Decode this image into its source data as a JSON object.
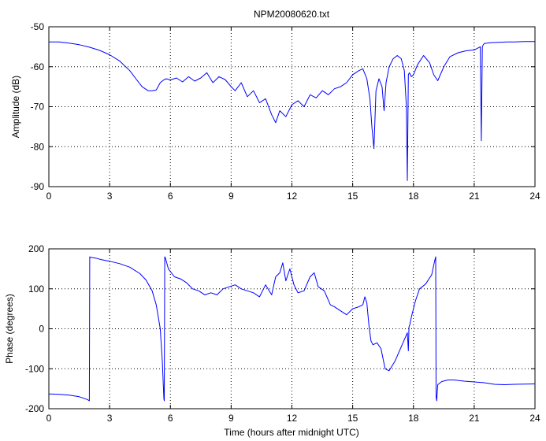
{
  "chart_data": [
    {
      "type": "line",
      "title": "NPM20080620.txt",
      "xlabel": "",
      "ylabel": "Amplitude (dB)",
      "xlim": [
        0,
        24
      ],
      "ylim": [
        -90,
        -50
      ],
      "xticks": [
        "0",
        "3",
        "6",
        "9",
        "12",
        "15",
        "18",
        "21",
        "24"
      ],
      "yticks": [
        "-50",
        "-60",
        "-70",
        "-80",
        "-90"
      ],
      "grid": true,
      "series": [
        {
          "color": "#0000ff",
          "x": [
            0,
            0.5,
            1,
            1.5,
            2,
            2.5,
            3,
            3.5,
            4,
            4.3,
            4.6,
            4.9,
            5.1,
            5.3,
            5.5,
            5.7,
            5.8,
            6.0,
            6.3,
            6.6,
            6.9,
            7.2,
            7.5,
            7.8,
            8.1,
            8.4,
            8.7,
            9.0,
            9.2,
            9.5,
            9.8,
            10.1,
            10.4,
            10.7,
            11.0,
            11.2,
            11.4,
            11.7,
            12.0,
            12.3,
            12.6,
            12.9,
            13.2,
            13.5,
            13.8,
            14.1,
            14.4,
            14.7,
            15.0,
            15.3,
            15.5,
            15.7,
            15.85,
            15.95,
            16.05,
            16.15,
            16.3,
            16.45,
            16.55,
            16.65,
            16.8,
            17.0,
            17.2,
            17.4,
            17.55,
            17.65,
            17.7,
            17.75,
            17.8,
            17.9,
            18.0,
            18.2,
            18.5,
            18.8,
            19.0,
            19.2,
            19.5,
            19.8,
            20.2,
            20.6,
            21.0,
            21.3,
            21.35,
            21.4,
            21.45,
            21.5,
            21.8,
            22.2,
            22.6,
            23.0,
            23.5,
            24
          ],
          "y": [
            -53.8,
            -53.8,
            -54.1,
            -54.5,
            -55.1,
            -55.9,
            -57.0,
            -58.6,
            -61.0,
            -63.0,
            -65.0,
            -66.0,
            -66.0,
            -65.8,
            -64.0,
            -63.2,
            -63.0,
            -63.3,
            -62.8,
            -63.8,
            -62.5,
            -63.6,
            -62.8,
            -61.5,
            -64.0,
            -62.5,
            -63.2,
            -65.0,
            -66.0,
            -64.0,
            -67.5,
            -66.0,
            -69.0,
            -68.0,
            -72.0,
            -74.0,
            -71.0,
            -72.5,
            -69.5,
            -68.5,
            -70.0,
            -67.0,
            -67.8,
            -66.0,
            -67.0,
            -65.5,
            -65.0,
            -64.0,
            -62.0,
            -61.0,
            -60.5,
            -63.0,
            -68.0,
            -75.0,
            -80.5,
            -66.0,
            -63.0,
            -65.0,
            -71.0,
            -64.0,
            -60.0,
            -58.0,
            -57.2,
            -58.0,
            -61.0,
            -70.0,
            -88.5,
            -62.0,
            -61.5,
            -62.5,
            -62.0,
            -59.5,
            -57.2,
            -59.0,
            -62.0,
            -63.5,
            -60.0,
            -57.5,
            -56.5,
            -56.0,
            -55.8,
            -55.0,
            -78.5,
            -55.0,
            -54.5,
            -54.2,
            -54.0,
            -53.9,
            -53.8,
            -53.8,
            -53.7,
            -53.7
          ]
        }
      ]
    },
    {
      "type": "line",
      "title": "",
      "xlabel": "Time (hours after midnight UTC)",
      "ylabel": "Phase (degrees)",
      "xlim": [
        0,
        24
      ],
      "ylim": [
        -200,
        200
      ],
      "xticks": [
        "0",
        "3",
        "6",
        "9",
        "12",
        "15",
        "18",
        "21",
        "24"
      ],
      "yticks": [
        "200",
        "100",
        "0",
        "-100",
        "-200"
      ],
      "grid": true,
      "series": [
        {
          "color": "#0000ff",
          "x": [
            0,
            0.5,
            1.0,
            1.5,
            1.9,
            2.0,
            2.02,
            2.05,
            2.3,
            2.6,
            3.0,
            3.5,
            4.0,
            4.5,
            4.8,
            5.1,
            5.3,
            5.5,
            5.6,
            5.68,
            5.7,
            5.72,
            5.75,
            5.9,
            6.2,
            6.5,
            6.8,
            7.1,
            7.4,
            7.7,
            8.0,
            8.3,
            8.6,
            8.9,
            9.2,
            9.5,
            9.8,
            10.1,
            10.4,
            10.7,
            11.0,
            11.2,
            11.4,
            11.55,
            11.7,
            11.9,
            12.1,
            12.3,
            12.6,
            12.9,
            13.1,
            13.3,
            13.6,
            13.9,
            14.1,
            14.4,
            14.7,
            15.0,
            15.3,
            15.5,
            15.6,
            15.7,
            15.8,
            15.9,
            16.0,
            16.2,
            16.4,
            16.6,
            16.8,
            17.1,
            17.4,
            17.7,
            17.75,
            17.78,
            17.82,
            17.9,
            18.1,
            18.3,
            18.6,
            18.9,
            19.05,
            19.1,
            19.12,
            19.15,
            19.2,
            19.4,
            19.7,
            20.0,
            20.5,
            21.0,
            21.5,
            22.0,
            22.5,
            23.0,
            24.0
          ],
          "y": [
            -163,
            -164,
            -166,
            -170,
            -177,
            -180,
            180,
            179,
            177,
            173,
            169,
            163,
            154,
            138,
            122,
            95,
            60,
            0,
            -80,
            -175,
            -180,
            180,
            178,
            150,
            130,
            125,
            115,
            100,
            95,
            85,
            90,
            85,
            100,
            105,
            110,
            100,
            95,
            90,
            80,
            110,
            85,
            130,
            140,
            165,
            120,
            150,
            110,
            90,
            95,
            130,
            140,
            105,
            95,
            60,
            55,
            45,
            35,
            50,
            55,
            60,
            80,
            65,
            10,
            -30,
            -40,
            -35,
            -50,
            -100,
            -105,
            -80,
            -45,
            -10,
            -55,
            5,
            10,
            30,
            70,
            100,
            112,
            135,
            170,
            180,
            -170,
            -180,
            -140,
            -132,
            -128,
            -128,
            -131,
            -133,
            -135,
            -139,
            -140,
            -139,
            -138
          ]
        }
      ]
    }
  ]
}
